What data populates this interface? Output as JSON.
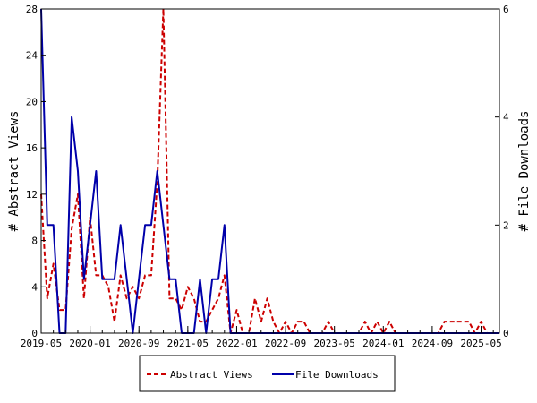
{
  "chart_data": {
    "type": "line",
    "x_unit": "month",
    "xlim": [
      "2019-05",
      "2025-08"
    ],
    "y_left": {
      "label": "# Abstract Views",
      "ylim": [
        0,
        28
      ],
      "ticks": [
        0,
        4,
        8,
        12,
        16,
        20,
        24,
        28
      ]
    },
    "y_right": {
      "label": "# File Downloads",
      "ylim": [
        0,
        6
      ],
      "ticks": [
        0,
        2,
        4,
        6
      ]
    },
    "x_tick_labels": [
      "2019-05",
      "2020-01",
      "2020-09",
      "2021-05",
      "2022-01",
      "2022-09",
      "2023-05",
      "2024-01",
      "2024-09",
      "2025-05"
    ],
    "x_ticks": [
      "2019-05",
      "2020-01",
      "2020-09",
      "2021-05",
      "2022-01",
      "2022-09",
      "2023-05",
      "2024-01",
      "2024-09",
      "2025-05"
    ],
    "grid": false,
    "legend": "bottom-center",
    "series": [
      {
        "name": "Abstract Views",
        "axis": "left",
        "color": "#cc0000",
        "style": "dashed",
        "points": [
          [
            "2019-05",
            12
          ],
          [
            "2019-06",
            3
          ],
          [
            "2019-07",
            6
          ],
          [
            "2019-08",
            2
          ],
          [
            "2019-09",
            2
          ],
          [
            "2019-10",
            9
          ],
          [
            "2019-11",
            12
          ],
          [
            "2019-12",
            3
          ],
          [
            "2020-01",
            10
          ],
          [
            "2020-02",
            5
          ],
          [
            "2020-03",
            5
          ],
          [
            "2020-04",
            4
          ],
          [
            "2020-05",
            1
          ],
          [
            "2020-06",
            5
          ],
          [
            "2020-07",
            3
          ],
          [
            "2020-08",
            4
          ],
          [
            "2020-09",
            3
          ],
          [
            "2020-10",
            5
          ],
          [
            "2020-11",
            5
          ],
          [
            "2020-12",
            13
          ],
          [
            "2021-01",
            28
          ],
          [
            "2021-02",
            3
          ],
          [
            "2021-03",
            3
          ],
          [
            "2021-04",
            2
          ],
          [
            "2021-05",
            4
          ],
          [
            "2021-06",
            3
          ],
          [
            "2021-07",
            1
          ],
          [
            "2021-08",
            1
          ],
          [
            "2021-09",
            2
          ],
          [
            "2021-10",
            3
          ],
          [
            "2021-11",
            5
          ],
          [
            "2021-12",
            0
          ],
          [
            "2022-01",
            2
          ],
          [
            "2022-02",
            0
          ],
          [
            "2022-03",
            0
          ],
          [
            "2022-04",
            3
          ],
          [
            "2022-05",
            1
          ],
          [
            "2022-06",
            3
          ],
          [
            "2022-07",
            1
          ],
          [
            "2022-08",
            0
          ],
          [
            "2022-09",
            1
          ],
          [
            "2022-10",
            0
          ],
          [
            "2022-11",
            1
          ],
          [
            "2022-12",
            1
          ],
          [
            "2023-01",
            0
          ],
          [
            "2023-02",
            0
          ],
          [
            "2023-03",
            0
          ],
          [
            "2023-04",
            1
          ],
          [
            "2023-05",
            0
          ],
          [
            "2023-06",
            0
          ],
          [
            "2023-07",
            0
          ],
          [
            "2023-08",
            0
          ],
          [
            "2023-09",
            0
          ],
          [
            "2023-10",
            1
          ],
          [
            "2023-11",
            0
          ],
          [
            "2023-12",
            1
          ],
          [
            "2024-01",
            0
          ],
          [
            "2024-02",
            1
          ],
          [
            "2024-03",
            0
          ],
          [
            "2024-04",
            0
          ],
          [
            "2024-05",
            0
          ],
          [
            "2024-06",
            0
          ],
          [
            "2024-07",
            0
          ],
          [
            "2024-08",
            0
          ],
          [
            "2024-09",
            0
          ],
          [
            "2024-10",
            0
          ],
          [
            "2024-11",
            1
          ],
          [
            "2024-12",
            1
          ],
          [
            "2025-01",
            1
          ],
          [
            "2025-02",
            1
          ],
          [
            "2025-03",
            1
          ],
          [
            "2025-04",
            0
          ],
          [
            "2025-05",
            1
          ],
          [
            "2025-06",
            0
          ],
          [
            "2025-07",
            0
          ],
          [
            "2025-08",
            0
          ]
        ]
      },
      {
        "name": "File Downloads",
        "axis": "right",
        "color": "#0000aa",
        "style": "solid",
        "points": [
          [
            "2019-05",
            6
          ],
          [
            "2019-06",
            2
          ],
          [
            "2019-07",
            2
          ],
          [
            "2019-08",
            0
          ],
          [
            "2019-09",
            0
          ],
          [
            "2019-10",
            4
          ],
          [
            "2019-11",
            3
          ],
          [
            "2019-12",
            1
          ],
          [
            "2020-01",
            2
          ],
          [
            "2020-02",
            3
          ],
          [
            "2020-03",
            1
          ],
          [
            "2020-04",
            1
          ],
          [
            "2020-05",
            1
          ],
          [
            "2020-06",
            2
          ],
          [
            "2020-07",
            1
          ],
          [
            "2020-08",
            0
          ],
          [
            "2020-09",
            1
          ],
          [
            "2020-10",
            2
          ],
          [
            "2020-11",
            2
          ],
          [
            "2020-12",
            3
          ],
          [
            "2021-01",
            2
          ],
          [
            "2021-02",
            1
          ],
          [
            "2021-03",
            1
          ],
          [
            "2021-04",
            0
          ],
          [
            "2021-05",
            0
          ],
          [
            "2021-06",
            0
          ],
          [
            "2021-07",
            1
          ],
          [
            "2021-08",
            0
          ],
          [
            "2021-09",
            1
          ],
          [
            "2021-10",
            1
          ],
          [
            "2021-11",
            2
          ],
          [
            "2021-12",
            0
          ],
          [
            "2022-01",
            0
          ],
          [
            "2022-02",
            0
          ],
          [
            "2022-03",
            0
          ],
          [
            "2022-04",
            0
          ],
          [
            "2022-05",
            0
          ],
          [
            "2022-06",
            0
          ],
          [
            "2022-07",
            0
          ],
          [
            "2022-08",
            0
          ],
          [
            "2022-09",
            0
          ],
          [
            "2022-10",
            0
          ],
          [
            "2022-11",
            0
          ],
          [
            "2022-12",
            0
          ],
          [
            "2023-01",
            0
          ],
          [
            "2023-02",
            0
          ],
          [
            "2023-03",
            0
          ],
          [
            "2023-04",
            0
          ],
          [
            "2023-05",
            0
          ],
          [
            "2023-06",
            0
          ],
          [
            "2023-07",
            0
          ],
          [
            "2023-08",
            0
          ],
          [
            "2023-09",
            0
          ],
          [
            "2023-10",
            0
          ],
          [
            "2023-11",
            0
          ],
          [
            "2023-12",
            0
          ],
          [
            "2024-01",
            0
          ],
          [
            "2024-02",
            0
          ],
          [
            "2024-03",
            0
          ],
          [
            "2024-04",
            0
          ],
          [
            "2024-05",
            0
          ],
          [
            "2024-06",
            0
          ],
          [
            "2024-07",
            0
          ],
          [
            "2024-08",
            0
          ],
          [
            "2024-09",
            0
          ],
          [
            "2024-10",
            0
          ],
          [
            "2024-11",
            0
          ],
          [
            "2024-12",
            0
          ],
          [
            "2025-01",
            0
          ],
          [
            "2025-02",
            0
          ],
          [
            "2025-03",
            0
          ],
          [
            "2025-04",
            0
          ],
          [
            "2025-05",
            0
          ],
          [
            "2025-06",
            0
          ],
          [
            "2025-07",
            0
          ],
          [
            "2025-08",
            0
          ]
        ]
      }
    ]
  }
}
